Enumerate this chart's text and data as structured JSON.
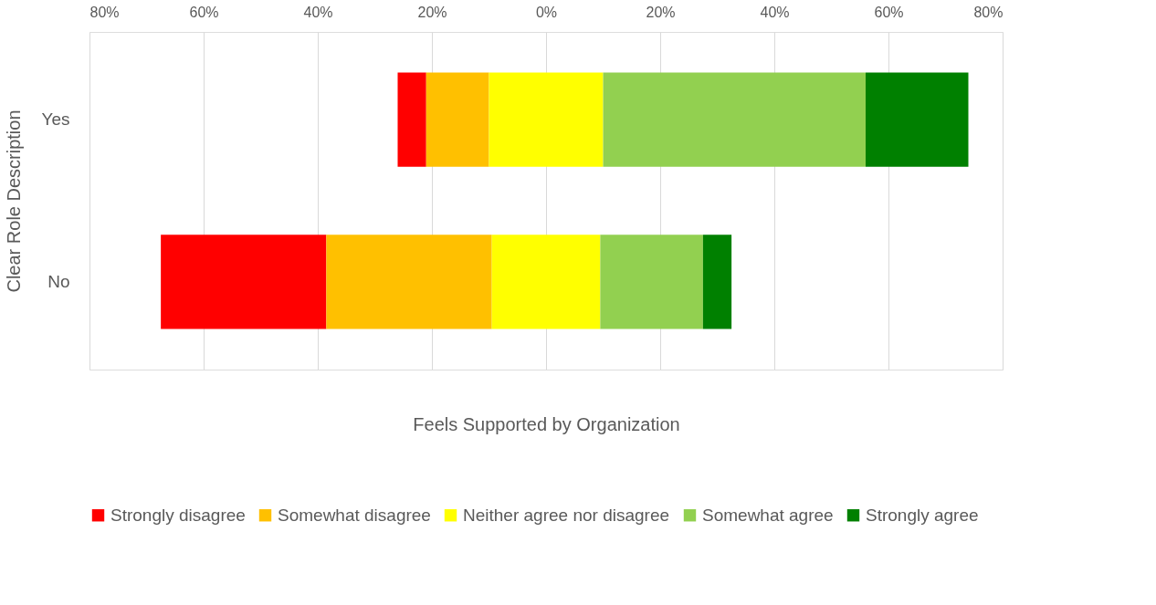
{
  "chart_data": {
    "type": "bar",
    "orientation": "horizontal",
    "xlabel": "Feels Supported by Organization",
    "ylabel": "Clear Role Description",
    "categories": [
      "Yes",
      "No"
    ],
    "series": [
      {
        "name": "Strongly disagree",
        "color": "#ff0000",
        "base": [
          -26,
          -67.5
        ],
        "values": [
          5,
          29
        ]
      },
      {
        "name": "Somewhat disagree",
        "color": "#ffc000",
        "base": [
          -21,
          -38.5
        ],
        "values": [
          11,
          29
        ]
      },
      {
        "name": "Neither agree nor disagree",
        "color": "#ffff00",
        "base": [
          -10,
          -9.5
        ],
        "values": [
          20,
          19
        ]
      },
      {
        "name": "Somewhat agree",
        "color": "#92d050",
        "base": [
          10,
          9.5
        ],
        "values": [
          46,
          18
        ]
      },
      {
        "name": "Strongly agree",
        "color": "#008000",
        "base": [
          56,
          27.5
        ],
        "values": [
          18,
          5
        ]
      }
    ],
    "xlim": [
      -80,
      80
    ],
    "xticks": [
      {
        "value": -80,
        "label": "80%"
      },
      {
        "value": -60,
        "label": "60%"
      },
      {
        "value": -40,
        "label": "40%"
      },
      {
        "value": -20,
        "label": "20%"
      },
      {
        "value": 0,
        "label": "0%"
      },
      {
        "value": 20,
        "label": "20%"
      },
      {
        "value": 40,
        "label": "40%"
      },
      {
        "value": 60,
        "label": "60%"
      },
      {
        "value": 80,
        "label": "80%"
      }
    ],
    "grid": "x",
    "legend": "bottom"
  }
}
